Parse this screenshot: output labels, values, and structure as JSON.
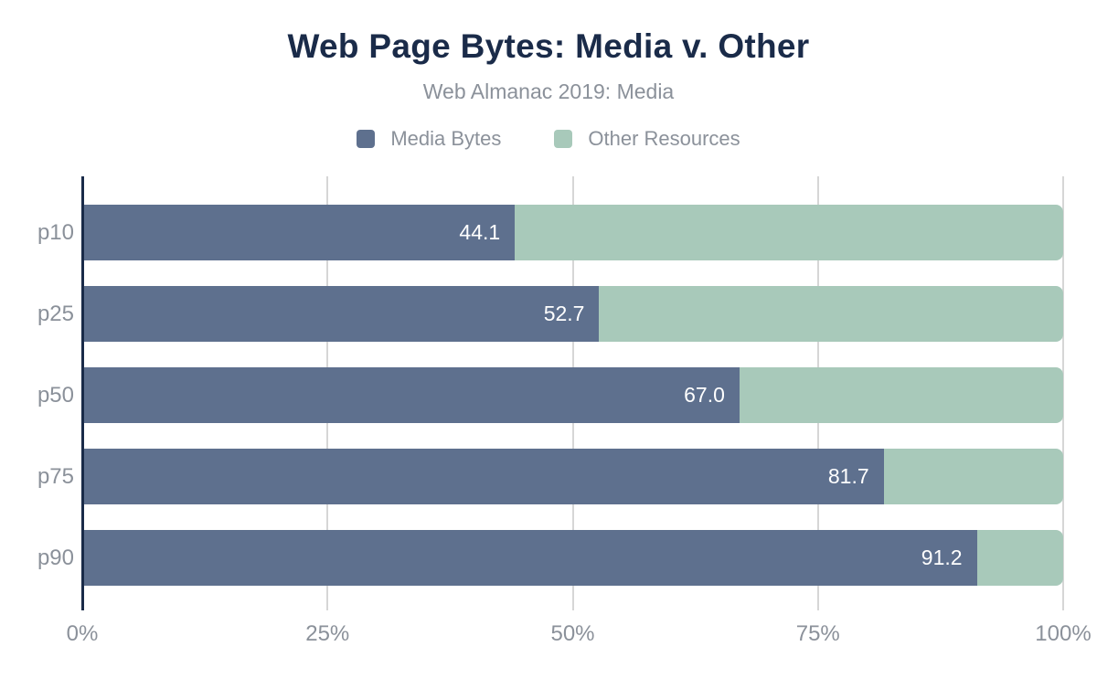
{
  "chart_data": {
    "type": "bar",
    "orientation": "horizontal",
    "stacked": true,
    "title": "Web Page Bytes: Media v. Other",
    "subtitle": "Web Almanac 2019: Media",
    "categories": [
      "p10",
      "p25",
      "p50",
      "p75",
      "p90"
    ],
    "series": [
      {
        "name": "Media Bytes",
        "color": "#5e708e",
        "values": [
          44.1,
          52.7,
          67.0,
          81.7,
          91.2
        ]
      },
      {
        "name": "Other Resources",
        "color": "#a8c9ba",
        "values": [
          55.9,
          47.3,
          33.0,
          18.3,
          8.8
        ]
      }
    ],
    "value_labels": [
      "44.1",
      "52.7",
      "67.0",
      "81.7",
      "91.2"
    ],
    "xlabel": "",
    "ylabel": "",
    "x_ticks": [
      "0%",
      "25%",
      "50%",
      "75%",
      "100%"
    ],
    "x_tick_values": [
      0,
      25,
      50,
      75,
      100
    ],
    "xlim": [
      0,
      100
    ],
    "grid": "vertical-gridlines-at-ticks",
    "legend_position": "top-center"
  },
  "colors": {
    "background": "#ffffff",
    "title_text": "#1a2b49",
    "axis_line": "#1a2b49",
    "gridline": "#d6d6d6",
    "muted_text": "#8b919a",
    "bar_value_text": "#ffffff"
  }
}
